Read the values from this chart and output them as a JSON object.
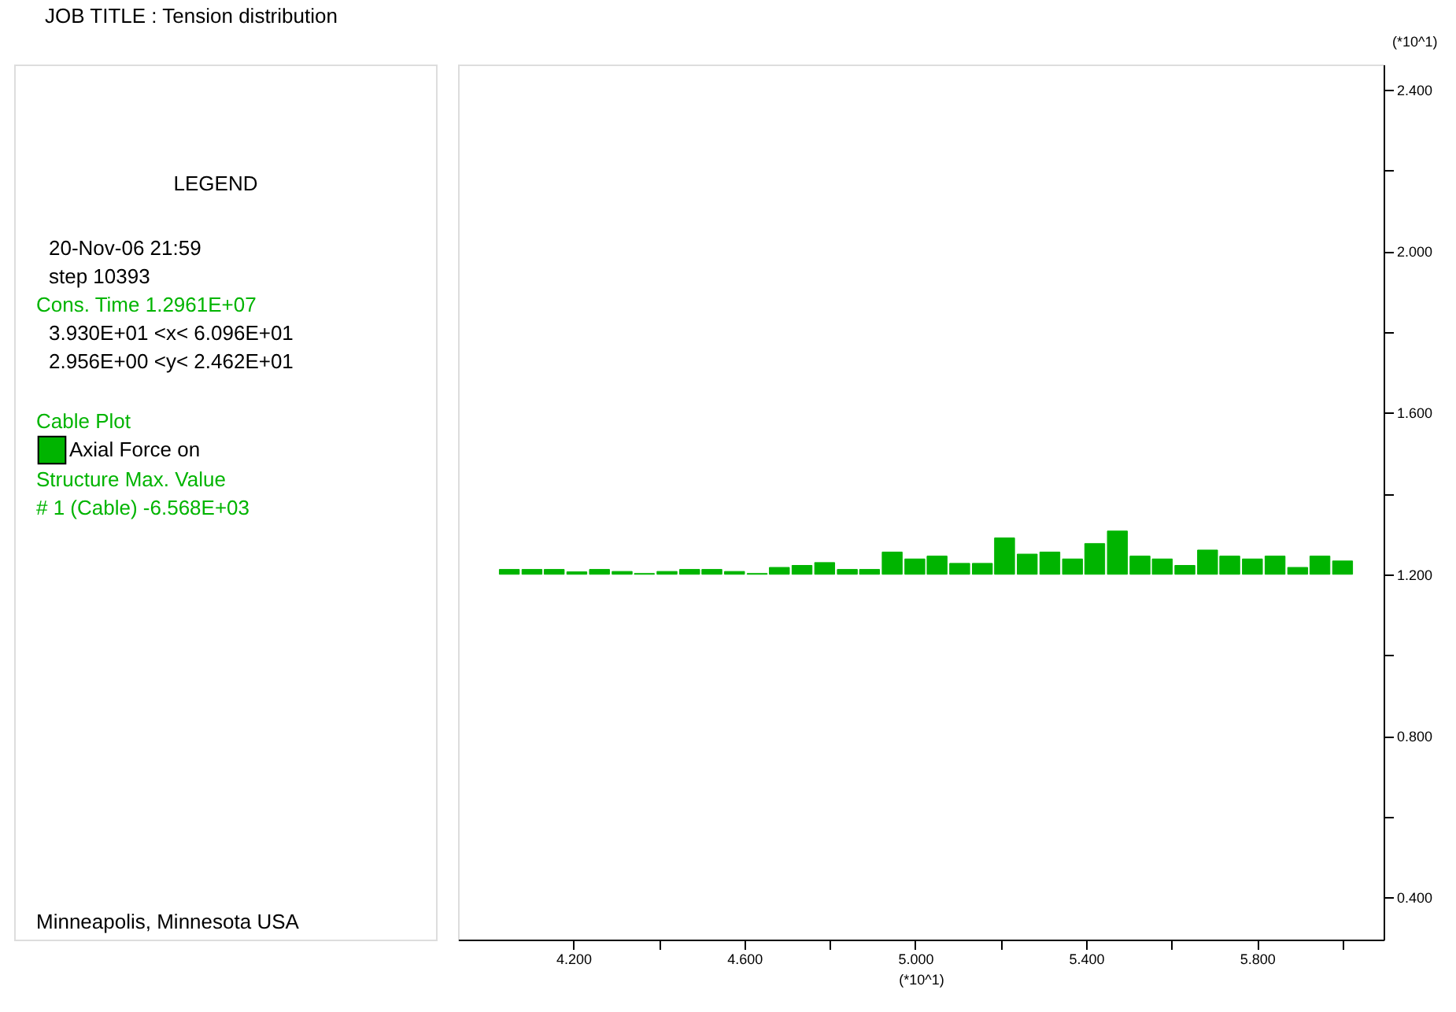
{
  "chart_data": {
    "type": "bar",
    "title": "JOB TITLE : Tension distribution",
    "xlabel": "(*10^1)",
    "ylabel": "(*10^1)",
    "x": [
      4.05,
      4.103,
      4.155,
      4.208,
      4.261,
      4.314,
      4.366,
      4.419,
      4.472,
      4.524,
      4.577,
      4.63,
      4.682,
      4.735,
      4.788,
      4.841,
      4.893,
      4.946,
      4.999,
      5.051,
      5.104,
      5.157,
      5.209,
      5.262,
      5.315,
      5.368,
      5.42,
      5.473,
      5.526,
      5.578,
      5.631,
      5.684,
      5.736,
      5.789,
      5.842,
      5.895,
      5.947,
      6.0
    ],
    "series": [
      {
        "name": "Axial Force on",
        "color": "#00b400",
        "base": [
          1.2,
          1.2,
          1.2,
          1.2,
          1.2,
          1.2,
          1.2,
          1.2,
          1.2,
          1.2,
          1.2,
          1.2,
          1.2,
          1.2,
          1.2,
          1.2,
          1.2,
          1.2,
          1.2,
          1.2,
          1.2,
          1.2,
          1.2,
          1.2,
          1.2,
          1.2,
          1.2,
          1.2,
          1.2,
          1.2,
          1.2,
          1.2,
          1.2,
          1.2,
          1.2,
          1.2,
          1.2,
          1.2
        ],
        "values": [
          0.012,
          0.012,
          0.012,
          0.006,
          0.012,
          0.007,
          0.002,
          0.007,
          0.012,
          0.012,
          0.007,
          0.002,
          0.017,
          0.022,
          0.029,
          0.012,
          0.012,
          0.055,
          0.038,
          0.045,
          0.027,
          0.027,
          0.09,
          0.05,
          0.055,
          0.038,
          0.076,
          0.107,
          0.045,
          0.038,
          0.022,
          0.06,
          0.045,
          0.038,
          0.045,
          0.017,
          0.045,
          0.033
        ]
      }
    ],
    "xlim": [
      3.93,
      6.096
    ],
    "ylim": [
      0.2956,
      2.462
    ],
    "xticks": [
      {
        "value": 4.2,
        "label": "4.200"
      },
      {
        "value": 4.4,
        "label": null
      },
      {
        "value": 4.6,
        "label": "4.600"
      },
      {
        "value": 4.8,
        "label": null
      },
      {
        "value": 5.0,
        "label": "5.000"
      },
      {
        "value": 5.2,
        "label": null
      },
      {
        "value": 5.4,
        "label": "5.400"
      },
      {
        "value": 5.6,
        "label": null
      },
      {
        "value": 5.8,
        "label": "5.800"
      },
      {
        "value": 6.0,
        "label": null
      }
    ],
    "yticks": [
      {
        "value": 0.4,
        "label": "0.400"
      },
      {
        "value": 0.6,
        "label": null
      },
      {
        "value": 0.8,
        "label": "0.800"
      },
      {
        "value": 1.0,
        "label": null
      },
      {
        "value": 1.2,
        "label": "1.200"
      },
      {
        "value": 1.4,
        "label": null
      },
      {
        "value": 1.6,
        "label": "1.600"
      },
      {
        "value": 1.8,
        "label": null
      },
      {
        "value": 2.0,
        "label": "2.000"
      },
      {
        "value": 2.2,
        "label": null
      },
      {
        "value": 2.4,
        "label": "2.400"
      }
    ],
    "grid": false,
    "legend": "left",
    "annotations": [
      "LEGEND",
      "20-Nov-06  21:59",
      "step    10393",
      "Cons. Time    1.2961E+07",
      "3.930E+01 <x<  6.096E+01",
      "2.956E+00 <y<  2.462E+01",
      "Cable Plot",
      "Structure     Max. Value",
      "# 1 (Cable)     -6.568E+03",
      "Minneapolis, Minnesota  USA"
    ]
  }
}
